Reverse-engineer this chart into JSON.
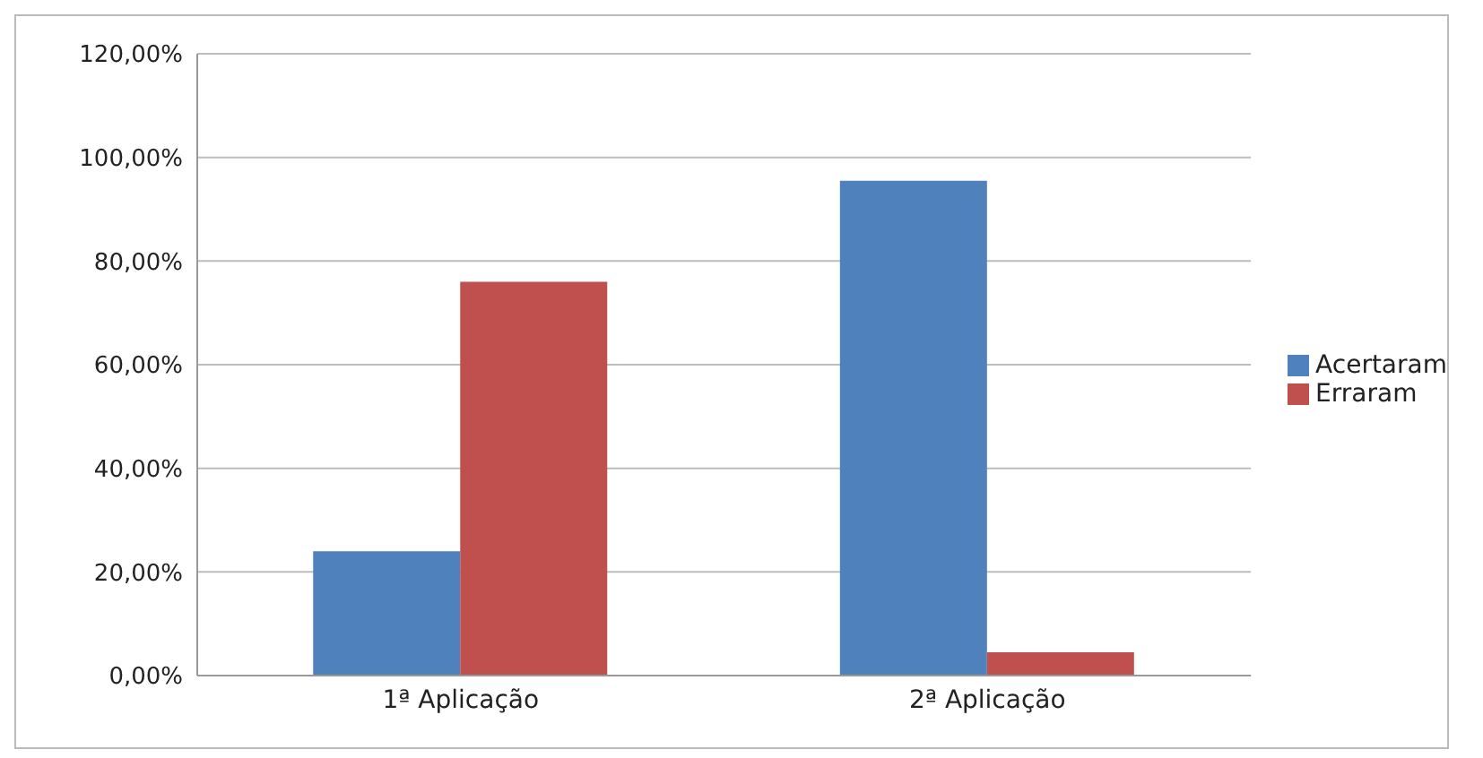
{
  "chart_data": {
    "type": "bar",
    "categories": [
      "1ª Aplicação",
      "2ª Aplicação"
    ],
    "series": [
      {
        "name": "Acertaram",
        "color": "#4f81bd",
        "values": [
          24,
          95.5
        ]
      },
      {
        "name": "Erraram",
        "color": "#c0504d",
        "values": [
          76,
          4.5
        ]
      }
    ],
    "ylim": [
      0,
      120
    ],
    "yticks": [
      {
        "value": 0,
        "label": "0,00%"
      },
      {
        "value": 20,
        "label": "20,00%"
      },
      {
        "value": 40,
        "label": "40,00%"
      },
      {
        "value": 60,
        "label": "60,00%"
      },
      {
        "value": 80,
        "label": "80,00%"
      },
      {
        "value": 100,
        "label": "100,00%"
      },
      {
        "value": 120,
        "label": "120,00%"
      }
    ],
    "grid": "y",
    "legend": "right"
  }
}
